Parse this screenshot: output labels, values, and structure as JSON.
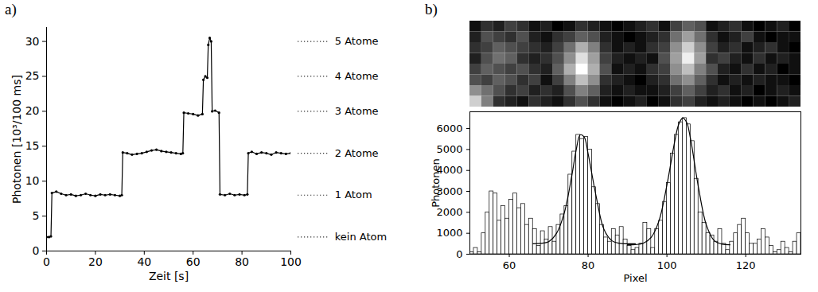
{
  "chart_data": [
    {
      "type": "line",
      "panel": "a)",
      "xlabel": "Zeit [s]",
      "ylabel": "Photonen [10³/100 ms]",
      "color": "#000000",
      "marker": "circle",
      "x": [
        0,
        1,
        1.8,
        2.2,
        4,
        6,
        8,
        10,
        12,
        14,
        16,
        18,
        20,
        22,
        24,
        26,
        28,
        30,
        30.8,
        31.2,
        33,
        35,
        37,
        39,
        41,
        43,
        45,
        47,
        49,
        51,
        53,
        55,
        55.8,
        56.2,
        58,
        60,
        62,
        63.8,
        64.2,
        65,
        65.8,
        66.2,
        66.8,
        67.4,
        67.8,
        69,
        70.6,
        71,
        73,
        75,
        77,
        79,
        81,
        82.2,
        82.6,
        84,
        86,
        88,
        90,
        92,
        94,
        96,
        98,
        100
      ],
      "values": [
        2,
        2,
        2.1,
        8.3,
        8.5,
        8.2,
        8.0,
        8.1,
        7.9,
        8.0,
        8.2,
        8.0,
        7.9,
        8.1,
        8.0,
        8.1,
        8.0,
        7.9,
        8.0,
        14.1,
        14.0,
        13.8,
        13.9,
        14.0,
        14.2,
        14.4,
        14.5,
        14.3,
        14.2,
        14.1,
        14.0,
        13.9,
        14.0,
        19.8,
        19.7,
        19.6,
        19.4,
        19.6,
        24.5,
        25,
        24.8,
        29.5,
        30.5,
        30,
        20,
        20.1,
        19.8,
        8.1,
        8.0,
        8.2,
        8.0,
        8.1,
        8.0,
        8.1,
        14,
        14.2,
        13.9,
        14.1,
        14.0,
        13.8,
        14.1,
        14.0,
        13.9,
        14.0
      ],
      "xlim": [
        0,
        100
      ],
      "xticks": [
        0,
        20,
        40,
        60,
        80,
        100
      ],
      "ylim": [
        0,
        32
      ],
      "yticks": [
        0,
        5,
        10,
        15,
        20,
        25,
        30
      ],
      "annotations": [
        {
          "text": "5 Atome",
          "y": 30
        },
        {
          "text": "4 Atome",
          "y": 25
        },
        {
          "text": "3 Atome",
          "y": 20
        },
        {
          "text": "2 Atome",
          "y": 14
        },
        {
          "text": "1 Atom",
          "y": 8
        },
        {
          "text": "kein Atom",
          "y": 2
        }
      ]
    },
    {
      "type": "histogram",
      "panel": "b)",
      "xlabel": "Pixel",
      "ylabel": "Photonen",
      "color": "#ffffff",
      "bins": [
        50,
        51,
        52,
        53,
        54,
        55,
        56,
        57,
        58,
        59,
        60,
        61,
        62,
        63,
        64,
        65,
        66,
        67,
        68,
        69,
        70,
        71,
        72,
        73,
        74,
        75,
        76,
        77,
        78,
        79,
        80,
        81,
        82,
        83,
        84,
        85,
        86,
        87,
        88,
        89,
        90,
        91,
        92,
        93,
        94,
        95,
        96,
        97,
        98,
        99,
        100,
        101,
        102,
        103,
        104,
        105,
        106,
        107,
        108,
        109,
        110,
        111,
        112,
        113,
        114,
        115,
        116,
        117,
        118,
        119,
        120,
        121,
        122,
        123,
        124,
        125,
        126,
        127,
        128,
        129,
        130,
        131,
        132,
        133,
        134
      ],
      "values": [
        100,
        300,
        100,
        1000,
        2000,
        3000,
        2900,
        1600,
        2300,
        1700,
        2600,
        2900,
        2200,
        2400,
        1400,
        1700,
        1200,
        400,
        1100,
        700,
        1300,
        600,
        1400,
        1900,
        2300,
        3800,
        4900,
        5700,
        5500,
        5600,
        5000,
        3200,
        2400,
        1400,
        800,
        600,
        1200,
        900,
        1300,
        700,
        400,
        200,
        300,
        500,
        1500,
        1200,
        300,
        1200,
        1600,
        2500,
        3400,
        4800,
        5700,
        6300,
        6500,
        6200,
        5400,
        3600,
        2000,
        1500,
        1000,
        900,
        600,
        1200,
        500,
        200,
        600,
        1000,
        1400,
        1700,
        1000,
        500,
        500,
        700,
        1200,
        800,
        400,
        100,
        200,
        600,
        300,
        100,
        600,
        1000
      ],
      "xlim": [
        50,
        134
      ],
      "xticks": [
        60,
        80,
        100,
        120
      ],
      "ylim": [
        0,
        6800
      ],
      "yticks": [
        0,
        1000,
        2000,
        3000,
        4000,
        5000,
        6000
      ],
      "series": [
        {
          "type": "line",
          "color": "#000000",
          "x": [
            66,
            68,
            70,
            72,
            74,
            76,
            77,
            78,
            79,
            80,
            82,
            84,
            86,
            88,
            90,
            92
          ],
          "values": [
            500,
            520,
            600,
            1000,
            2000,
            3900,
            5000,
            5700,
            5600,
            4800,
            2800,
            1200,
            650,
            520,
            500,
            500
          ]
        },
        {
          "type": "line",
          "color": "#000000",
          "x": [
            90,
            92,
            94,
            96,
            98,
            100,
            102,
            103,
            104,
            105,
            106,
            108,
            110,
            112,
            114,
            116
          ],
          "values": [
            450,
            460,
            520,
            800,
            1600,
            3300,
            5400,
            6200,
            6500,
            6300,
            5500,
            3200,
            1400,
            650,
            480,
            450
          ]
        }
      ],
      "image": {
        "values": [
          [
            10,
            20,
            15,
            25,
            20,
            10,
            15,
            5,
            10,
            20,
            15,
            10,
            5,
            10,
            15,
            20,
            10,
            25,
            35,
            30,
            10,
            15,
            20,
            10,
            5,
            10,
            15,
            5
          ],
          [
            15,
            30,
            25,
            20,
            30,
            15,
            10,
            20,
            25,
            35,
            30,
            15,
            10,
            5,
            10,
            15,
            20,
            40,
            55,
            40,
            20,
            10,
            15,
            25,
            10,
            5,
            10,
            10
          ],
          [
            20,
            25,
            35,
            30,
            25,
            20,
            15,
            25,
            40,
            60,
            45,
            20,
            10,
            15,
            10,
            20,
            25,
            50,
            70,
            50,
            25,
            15,
            20,
            10,
            15,
            20,
            10,
            5
          ],
          [
            15,
            30,
            40,
            35,
            20,
            15,
            20,
            30,
            50,
            75,
            55,
            25,
            15,
            10,
            15,
            10,
            30,
            55,
            80,
            55,
            20,
            25,
            15,
            10,
            20,
            10,
            15,
            10
          ],
          [
            25,
            35,
            30,
            25,
            30,
            20,
            15,
            35,
            60,
            85,
            60,
            30,
            10,
            15,
            10,
            20,
            25,
            50,
            65,
            45,
            30,
            15,
            10,
            20,
            10,
            15,
            5,
            10
          ],
          [
            30,
            25,
            35,
            30,
            20,
            25,
            10,
            25,
            45,
            65,
            50,
            20,
            15,
            10,
            5,
            15,
            20,
            40,
            50,
            35,
            20,
            10,
            15,
            10,
            15,
            10,
            10,
            5
          ],
          [
            50,
            40,
            30,
            20,
            25,
            15,
            20,
            15,
            30,
            45,
            35,
            15,
            10,
            15,
            10,
            10,
            15,
            25,
            35,
            25,
            15,
            20,
            10,
            15,
            5,
            10,
            15,
            10
          ],
          [
            70,
            45,
            20,
            15,
            10,
            20,
            15,
            10,
            20,
            30,
            20,
            10,
            5,
            10,
            15,
            5,
            10,
            20,
            25,
            15,
            10,
            15,
            10,
            5,
            10,
            5,
            10,
            15
          ]
        ]
      }
    }
  ]
}
